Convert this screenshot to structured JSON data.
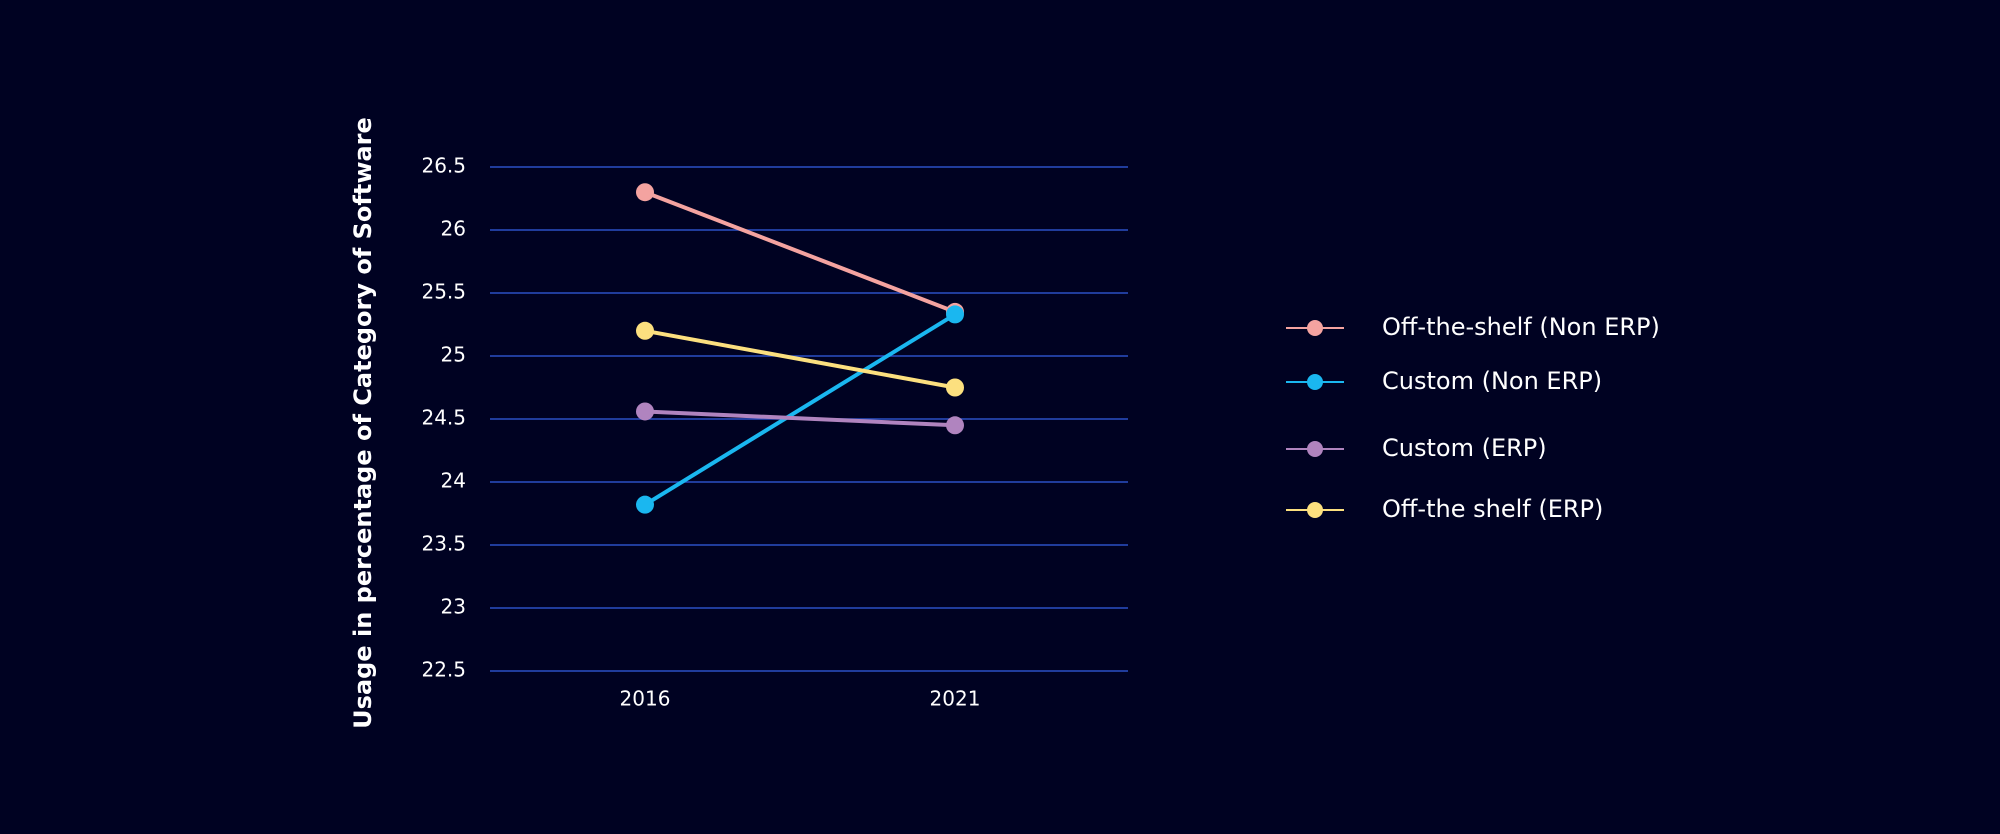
{
  "chart_data": {
    "type": "line",
    "title": "",
    "xlabel": "",
    "ylabel": "Usage in percentage of Category of Software",
    "categories": [
      "2016",
      "2021"
    ],
    "ylim": [
      22.5,
      26.5
    ],
    "yticks": [
      "22.5",
      "23",
      "23.5",
      "24",
      "24.5",
      "25",
      "25.5",
      "26",
      "26.5"
    ],
    "grid": true,
    "legend_position": "right",
    "series": [
      {
        "name": "Off-the-shelf (Non ERP)",
        "values": [
          26.3,
          25.35
        ],
        "color": "#f4a3a0"
      },
      {
        "name": "Custom (Non ERP)",
        "values": [
          23.82,
          25.33
        ],
        "color": "#1ab7f0"
      },
      {
        "name": "Custom (ERP)",
        "values": [
          24.56,
          24.45
        ],
        "color": "#b084bf"
      },
      {
        "name": "Off-the shelf (ERP)",
        "values": [
          25.2,
          24.75
        ],
        "color": "#fce07f"
      }
    ],
    "colors": {
      "background": "#000222",
      "grid": "#2a4fc4",
      "text": "#ffffff"
    }
  }
}
